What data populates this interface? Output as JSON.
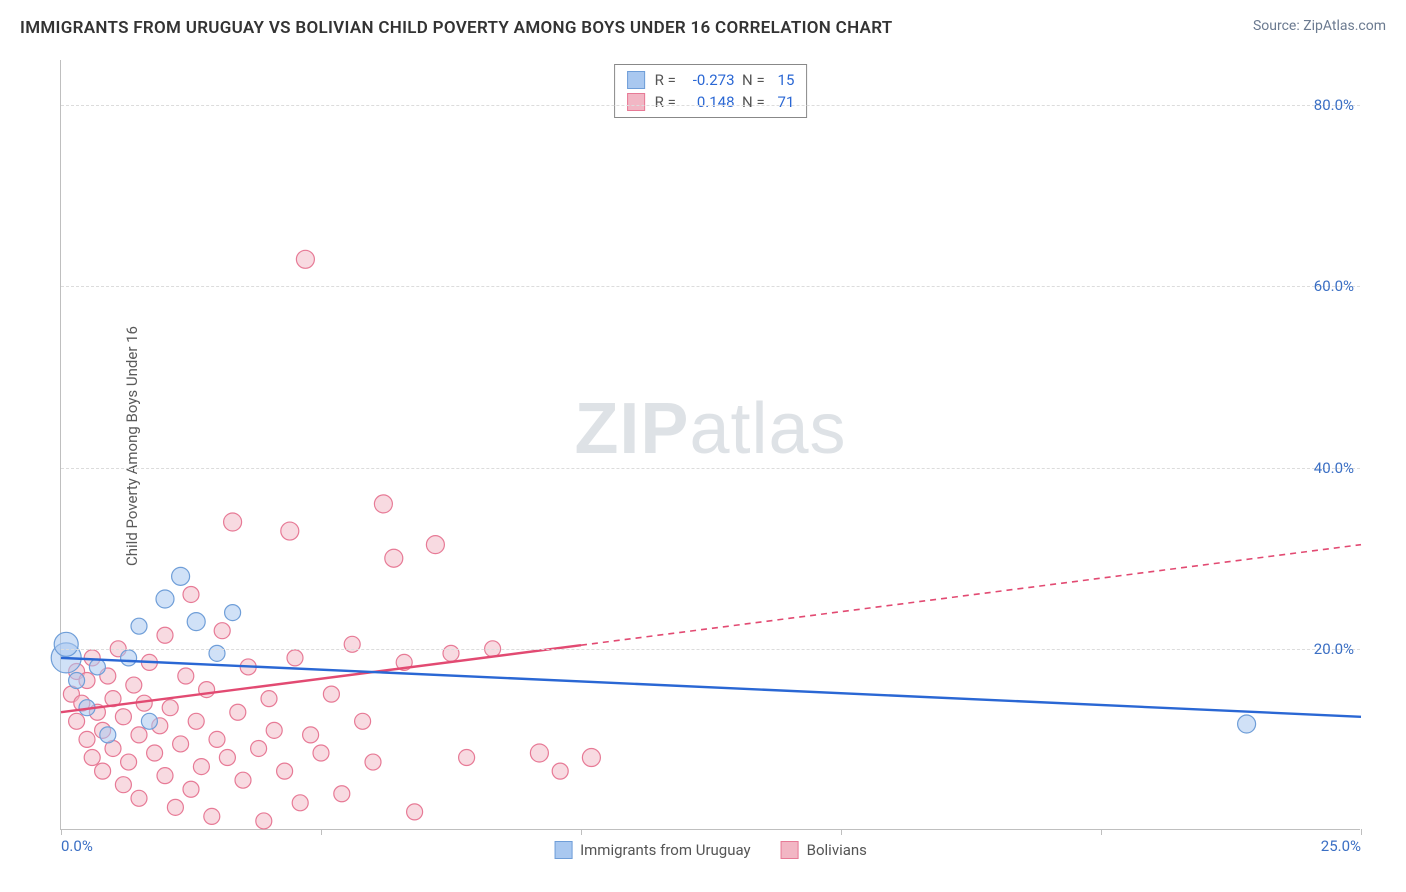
{
  "header": {
    "title": "IMMIGRANTS FROM URUGUAY VS BOLIVIAN CHILD POVERTY AMONG BOYS UNDER 16 CORRELATION CHART",
    "source_label": "Source: ",
    "source_value": "ZipAtlas.com"
  },
  "chart": {
    "type": "scatter",
    "ylabel": "Child Poverty Among Boys Under 16",
    "xlim": [
      0,
      25
    ],
    "ylim": [
      0,
      85
    ],
    "xticks": [
      0,
      5,
      10,
      15,
      20,
      25
    ],
    "xtick_labels": [
      "0.0%",
      "",
      "",
      "",
      "",
      "25.0%"
    ],
    "yticks": [
      20,
      40,
      60,
      80
    ],
    "ytick_labels": [
      "20.0%",
      "40.0%",
      "60.0%",
      "80.0%"
    ],
    "grid_color": "#dcdcdc",
    "axis_color": "#bfbfbf",
    "background_color": "#ffffff",
    "tick_label_color": "#3b6fc4",
    "axis_label_color": "#5a5a5a",
    "watermark": {
      "text_bold": "ZIP",
      "text_rest": "atlas",
      "color": "#9aa6b2",
      "opacity": 0.32,
      "fontsize": 72
    }
  },
  "series": {
    "uruguay": {
      "label": "Immigrants from Uruguay",
      "color_fill": "#a9c8f0",
      "color_stroke": "#6f9ed8",
      "line_color": "#2a67d4",
      "marker_radius": 8,
      "opacity": 0.55,
      "R": "-0.273",
      "N": "15",
      "regression": {
        "x1": 0,
        "y1": 19.0,
        "x2": 25,
        "y2": 12.5,
        "dash_from_x": 25
      },
      "points": [
        [
          0.1,
          19.0,
          15
        ],
        [
          0.1,
          20.5,
          12
        ],
        [
          0.3,
          16.5,
          8
        ],
        [
          0.5,
          13.5,
          8
        ],
        [
          0.7,
          18.0,
          8
        ],
        [
          0.9,
          10.5,
          8
        ],
        [
          1.3,
          19.0,
          8
        ],
        [
          1.5,
          22.5,
          8
        ],
        [
          1.7,
          12.0,
          8
        ],
        [
          2.0,
          25.5,
          9
        ],
        [
          2.3,
          28.0,
          9
        ],
        [
          2.6,
          23.0,
          9
        ],
        [
          3.0,
          19.5,
          8
        ],
        [
          3.3,
          24.0,
          8
        ],
        [
          22.8,
          11.7,
          9
        ]
      ]
    },
    "bolivians": {
      "label": "Bolivians",
      "color_fill": "#f2b6c4",
      "color_stroke": "#e77a96",
      "line_color": "#e24a72",
      "marker_radius": 8,
      "opacity": 0.5,
      "R": "0.148",
      "N": "71",
      "regression": {
        "x1": 0,
        "y1": 13.0,
        "x2": 25,
        "y2": 31.5,
        "dash_from_x": 10
      },
      "points": [
        [
          0.2,
          15.0,
          8
        ],
        [
          0.3,
          12.0,
          8
        ],
        [
          0.3,
          17.5,
          8
        ],
        [
          0.4,
          14.0,
          8
        ],
        [
          0.5,
          10.0,
          8
        ],
        [
          0.5,
          16.5,
          8
        ],
        [
          0.6,
          8.0,
          8
        ],
        [
          0.6,
          19.0,
          8
        ],
        [
          0.7,
          13.0,
          8
        ],
        [
          0.8,
          11.0,
          8
        ],
        [
          0.8,
          6.5,
          8
        ],
        [
          0.9,
          17.0,
          8
        ],
        [
          1.0,
          14.5,
          8
        ],
        [
          1.0,
          9.0,
          8
        ],
        [
          1.1,
          20.0,
          8
        ],
        [
          1.2,
          5.0,
          8
        ],
        [
          1.2,
          12.5,
          8
        ],
        [
          1.3,
          7.5,
          8
        ],
        [
          1.4,
          16.0,
          8
        ],
        [
          1.5,
          10.5,
          8
        ],
        [
          1.5,
          3.5,
          8
        ],
        [
          1.6,
          14.0,
          8
        ],
        [
          1.7,
          18.5,
          8
        ],
        [
          1.8,
          8.5,
          8
        ],
        [
          1.9,
          11.5,
          8
        ],
        [
          2.0,
          6.0,
          8
        ],
        [
          2.0,
          21.5,
          8
        ],
        [
          2.1,
          13.5,
          8
        ],
        [
          2.2,
          2.5,
          8
        ],
        [
          2.3,
          9.5,
          8
        ],
        [
          2.4,
          17.0,
          8
        ],
        [
          2.5,
          4.5,
          8
        ],
        [
          2.5,
          26.0,
          8
        ],
        [
          2.6,
          12.0,
          8
        ],
        [
          2.7,
          7.0,
          8
        ],
        [
          2.8,
          15.5,
          8
        ],
        [
          2.9,
          1.5,
          8
        ],
        [
          3.0,
          10.0,
          8
        ],
        [
          3.1,
          22.0,
          8
        ],
        [
          3.2,
          8.0,
          8
        ],
        [
          3.3,
          34.0,
          9
        ],
        [
          3.4,
          13.0,
          8
        ],
        [
          3.5,
          5.5,
          8
        ],
        [
          3.6,
          18.0,
          8
        ],
        [
          3.8,
          9.0,
          8
        ],
        [
          3.9,
          1.0,
          8
        ],
        [
          4.0,
          14.5,
          8
        ],
        [
          4.1,
          11.0,
          8
        ],
        [
          4.3,
          6.5,
          8
        ],
        [
          4.4,
          33.0,
          9
        ],
        [
          4.5,
          19.0,
          8
        ],
        [
          4.6,
          3.0,
          8
        ],
        [
          4.7,
          63.0,
          9
        ],
        [
          4.8,
          10.5,
          8
        ],
        [
          5.0,
          8.5,
          8
        ],
        [
          5.2,
          15.0,
          8
        ],
        [
          5.4,
          4.0,
          8
        ],
        [
          5.6,
          20.5,
          8
        ],
        [
          5.8,
          12.0,
          8
        ],
        [
          6.0,
          7.5,
          8
        ],
        [
          6.2,
          36.0,
          9
        ],
        [
          6.4,
          30.0,
          9
        ],
        [
          6.6,
          18.5,
          8
        ],
        [
          6.8,
          2.0,
          8
        ],
        [
          7.2,
          31.5,
          9
        ],
        [
          7.5,
          19.5,
          8
        ],
        [
          7.8,
          8.0,
          8
        ],
        [
          8.3,
          20.0,
          8
        ],
        [
          9.2,
          8.5,
          9
        ],
        [
          9.6,
          6.5,
          8
        ],
        [
          10.2,
          8.0,
          9
        ]
      ]
    }
  },
  "legend_box": {
    "R_label": "R",
    "N_label": "N",
    "eq": "="
  },
  "bottom_legend": {
    "items": [
      "uruguay",
      "bolivians"
    ]
  }
}
